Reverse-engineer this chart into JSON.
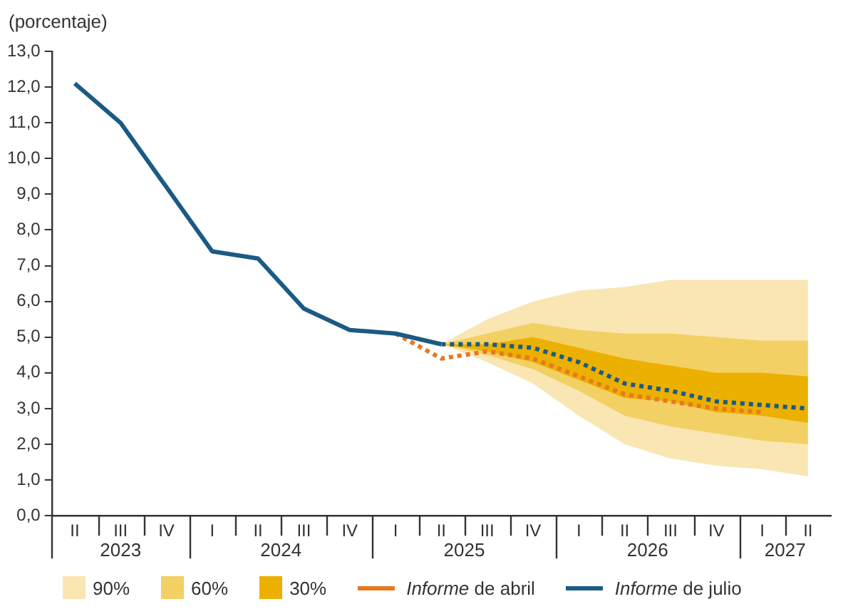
{
  "chart_data": {
    "type": "line",
    "ylabel": "(porcentaje)",
    "categories": [
      "II",
      "III",
      "IV",
      "I",
      "II",
      "III",
      "IV",
      "I",
      "II",
      "III",
      "IV",
      "I",
      "II",
      "III",
      "IV",
      "I",
      "II"
    ],
    "annotations": [
      "2023",
      "2024",
      "2025",
      "2026",
      "2027"
    ],
    "ylim": [
      0,
      13
    ],
    "yticks": [
      {
        "value": 0,
        "label": "0,0"
      },
      {
        "value": 1,
        "label": "1,0"
      },
      {
        "value": 2,
        "label": "2,0"
      },
      {
        "value": 3,
        "label": "3,0"
      },
      {
        "value": 4,
        "label": "4,0"
      },
      {
        "value": 5,
        "label": "5,0"
      },
      {
        "value": 6,
        "label": "6,0"
      },
      {
        "value": 7,
        "label": "7,0"
      },
      {
        "value": 8,
        "label": "8,0"
      },
      {
        "value": 9,
        "label": "9,0"
      },
      {
        "value": 10,
        "label": "10,0"
      },
      {
        "value": 11,
        "label": "11,0"
      },
      {
        "value": 12,
        "label": "12,0"
      },
      {
        "value": 13,
        "label": "13,0"
      }
    ],
    "series": [
      {
        "name": "90%",
        "type": "area",
        "color": "#f9e6b3",
        "values": [
          null,
          null,
          null,
          null,
          null,
          null,
          null,
          null,
          null,
          null,
          null,
          null,
          null,
          null,
          null,
          null,
          null
        ],
        "lower": [
          null,
          null,
          null,
          null,
          null,
          null,
          null,
          null,
          4.8,
          4.3,
          3.7,
          2.8,
          2.0,
          1.6,
          1.4,
          1.3,
          1.1
        ],
        "upper": [
          null,
          null,
          null,
          null,
          null,
          null,
          null,
          null,
          4.8,
          5.5,
          6.0,
          6.3,
          6.4,
          6.6,
          6.6,
          6.6,
          6.6
        ]
      },
      {
        "name": "60%",
        "type": "area",
        "color": "#f3d064",
        "values": [
          null,
          null,
          null,
          null,
          null,
          null,
          null,
          null,
          null,
          null,
          null,
          null,
          null,
          null,
          null,
          null,
          null
        ],
        "lower": [
          null,
          null,
          null,
          null,
          null,
          null,
          null,
          null,
          4.8,
          4.5,
          4.1,
          3.5,
          2.8,
          2.5,
          2.3,
          2.1,
          2.0
        ],
        "upper": [
          null,
          null,
          null,
          null,
          null,
          null,
          null,
          null,
          4.8,
          5.1,
          5.4,
          5.2,
          5.1,
          5.1,
          5.0,
          4.9,
          4.9
        ]
      },
      {
        "name": "30%",
        "type": "area",
        "color": "#ebb000",
        "values": [
          null,
          null,
          null,
          null,
          null,
          null,
          null,
          null,
          null,
          null,
          null,
          null,
          null,
          null,
          null,
          null,
          null
        ],
        "lower": [
          null,
          null,
          null,
          null,
          null,
          null,
          null,
          null,
          4.8,
          4.6,
          4.3,
          3.8,
          3.3,
          3.2,
          2.9,
          2.8,
          2.6
        ],
        "upper": [
          null,
          null,
          null,
          null,
          null,
          null,
          null,
          null,
          4.8,
          4.8,
          5.0,
          4.7,
          4.4,
          4.2,
          4.0,
          4.0,
          3.9
        ]
      },
      {
        "name": "Informe de abril",
        "type": "line",
        "line_style": "dotted",
        "color": "#e87722",
        "values": [
          null,
          null,
          null,
          null,
          null,
          null,
          null,
          5.1,
          4.4,
          4.6,
          4.4,
          3.9,
          3.4,
          3.2,
          3.0,
          2.9,
          null
        ]
      },
      {
        "name": "Informe de julio",
        "type": "line",
        "line_style": "solid",
        "color": "#1b5a85",
        "values": [
          12.1,
          11.0,
          9.2,
          7.4,
          7.2,
          5.8,
          5.2,
          5.1,
          4.8,
          null,
          null,
          null,
          null,
          null,
          null,
          null,
          null
        ]
      },
      {
        "type": "line",
        "line_style": "dotted",
        "color": "#1b5a85",
        "values": [
          null,
          null,
          null,
          null,
          null,
          null,
          null,
          null,
          4.8,
          4.8,
          4.7,
          4.3,
          3.7,
          3.5,
          3.2,
          3.1,
          3.0
        ]
      }
    ],
    "grid": false,
    "legend": "bottom",
    "marker": "none"
  }
}
